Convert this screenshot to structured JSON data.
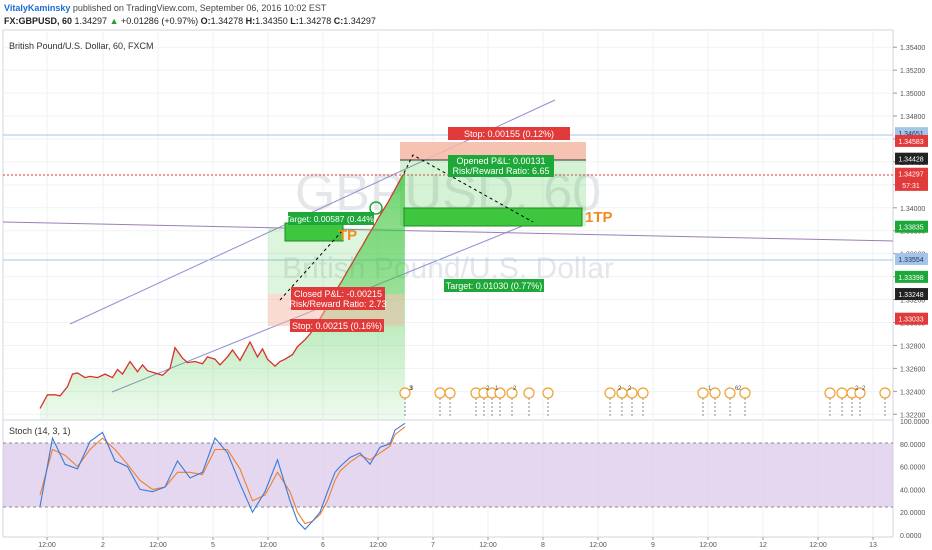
{
  "header": {
    "user": "VitalyKaminsky",
    "published": "published on TradingView.com, September 06, 2016 10:02 EST",
    "symbol": "FX:GBPUSD, 60",
    "last": "1.34297",
    "change_arrow": "▲",
    "change": "+0.01286 (+0.97%)",
    "o_label": "O:",
    "o": "1.34278",
    "h_label": "H:",
    "h": "1.34350",
    "l_label": "L:",
    "l": "1.34278",
    "c_label": "C:",
    "c": "1.34297"
  },
  "legend": "British Pound/U.S. Dollar, 60, FXCM",
  "watermark": {
    "line1": "GBPUSD, 60",
    "line2": "British Pound/U.S. Dollar"
  },
  "indicator_label": "Stoch (14, 3, 1)",
  "colors": {
    "price_line": "#d9302c",
    "area_fill": "#3ec63e",
    "stoch_k": "#3b7ad8",
    "stoch_d": "#f07f2a",
    "stoch_band": "#d8c6e8",
    "target_box": "#3dd94a",
    "stop_box": "#f4b8a6"
  },
  "chart_data": {
    "type": "area",
    "title": "",
    "x_ticks": [
      "12:00",
      "2",
      "12:00",
      "5",
      "12:00",
      "6",
      "12:00",
      "7",
      "12:00",
      "8",
      "12:00",
      "9",
      "12:00",
      "12",
      "12:00",
      "13"
    ],
    "y_ticks": [
      "1.35400",
      "1.35200",
      "1.35000",
      "1.34800",
      "1.34600",
      "1.34400",
      "1.34200",
      "1.34000",
      "1.33800",
      "1.33600",
      "1.33400",
      "1.33200",
      "1.33000",
      "1.32800",
      "1.32600",
      "1.32400",
      "1.32200"
    ],
    "ylim": [
      1.3215,
      1.3555
    ],
    "price_labels": [
      {
        "text": "1.34651",
        "value": 1.34651,
        "color": "#a5c4e8",
        "text_color": "#1a3a66"
      },
      {
        "text": "1.34583",
        "value": 1.34583,
        "color": "#e03a3a",
        "text_color": "#ffffff"
      },
      {
        "text": "1.34428",
        "value": 1.34428,
        "color": "#222222",
        "text_color": "#ffffff"
      },
      {
        "text": "1.34297",
        "value": 1.34297,
        "color": "#e03a3a",
        "text_color": "#ffffff"
      },
      {
        "text": "57:31",
        "value": 1.342,
        "color": "#e03a3a",
        "text_color": "#ffffff"
      },
      {
        "text": "1.33835",
        "value": 1.33835,
        "color": "#1fa83a",
        "text_color": "#ffffff"
      },
      {
        "text": "1.33554",
        "value": 1.33554,
        "color": "#a5c4e8",
        "text_color": "#1a3a66"
      },
      {
        "text": "1.33398",
        "value": 1.33398,
        "color": "#1fa83a",
        "text_color": "#ffffff"
      },
      {
        "text": "1.33248",
        "value": 1.33248,
        "color": "#222222",
        "text_color": "#ffffff"
      },
      {
        "text": "1.33033",
        "value": 1.33033,
        "color": "#e03a3a",
        "text_color": "#ffffff"
      }
    ],
    "series": [
      {
        "values": [
          [
            0,
            1.3225
          ],
          [
            3,
            1.3237
          ],
          [
            6,
            1.3237
          ],
          [
            8,
            1.3236
          ],
          [
            11,
            1.3244
          ],
          [
            13,
            1.3255
          ],
          [
            15,
            1.3256
          ],
          [
            18,
            1.3252
          ],
          [
            20,
            1.3253
          ],
          [
            23,
            1.3252
          ],
          [
            26,
            1.3255
          ],
          [
            29,
            1.3252
          ],
          [
            31,
            1.3259
          ],
          [
            33,
            1.3255
          ],
          [
            36,
            1.3266
          ],
          [
            39,
            1.3257
          ],
          [
            41,
            1.3263
          ],
          [
            43,
            1.3258
          ],
          [
            46,
            1.3256
          ],
          [
            49,
            1.3254
          ],
          [
            52,
            1.326
          ],
          [
            54,
            1.3278
          ],
          [
            57,
            1.3269
          ],
          [
            59,
            1.3265
          ],
          [
            62,
            1.3266
          ],
          [
            65,
            1.3264
          ],
          [
            67,
            1.327
          ],
          [
            70,
            1.3268
          ],
          [
            72,
            1.3263
          ],
          [
            75,
            1.327
          ],
          [
            77,
            1.3276
          ],
          [
            80,
            1.3267
          ],
          [
            82,
            1.3275
          ],
          [
            84,
            1.3283
          ],
          [
            87,
            1.327
          ],
          [
            89,
            1.3277
          ],
          [
            91,
            1.3268
          ],
          [
            94,
            1.3262
          ],
          [
            96,
            1.3266
          ],
          [
            98,
            1.3268
          ],
          [
            101,
            1.3272
          ],
          [
            103,
            1.3279
          ],
          [
            106,
            1.3285
          ],
          [
            108,
            1.329
          ],
          [
            110,
            1.3296
          ],
          [
            113,
            1.3307
          ],
          [
            115,
            1.3314
          ],
          [
            117,
            1.3322
          ],
          [
            119,
            1.333
          ],
          [
            121,
            1.3337
          ],
          [
            123,
            1.3345
          ],
          [
            125,
            1.3352
          ],
          [
            127,
            1.336
          ],
          [
            129,
            1.3367
          ],
          [
            131,
            1.3375
          ],
          [
            133,
            1.3382
          ],
          [
            135,
            1.339
          ],
          [
            137,
            1.3397
          ],
          [
            139,
            1.3404
          ],
          [
            141,
            1.3412
          ],
          [
            143,
            1.342
          ],
          [
            145,
            1.3428
          ],
          [
            146,
            1.343
          ]
        ]
      }
    ],
    "stoch": {
      "ylim": [
        0,
        100
      ],
      "y_ticks": [
        "100.0000",
        "80.0000",
        "60.0000",
        "40.0000",
        "20.0000",
        "0.0000"
      ],
      "upper": 80,
      "lower": 20,
      "k": [
        [
          0,
          25
        ],
        [
          5,
          85
        ],
        [
          10,
          62
        ],
        [
          15,
          58
        ],
        [
          20,
          82
        ],
        [
          25,
          90
        ],
        [
          30,
          65
        ],
        [
          35,
          60
        ],
        [
          40,
          40
        ],
        [
          45,
          38
        ],
        [
          50,
          42
        ],
        [
          55,
          65
        ],
        [
          60,
          50
        ],
        [
          65,
          55
        ],
        [
          70,
          85
        ],
        [
          75,
          72
        ],
        [
          80,
          45
        ],
        [
          85,
          20
        ],
        [
          90,
          38
        ],
        [
          95,
          66
        ],
        [
          100,
          30
        ],
        [
          103,
          12
        ],
        [
          106,
          5
        ],
        [
          109,
          12
        ],
        [
          112,
          20
        ],
        [
          115,
          38
        ],
        [
          118,
          55
        ],
        [
          120,
          60
        ],
        [
          124,
          68
        ],
        [
          128,
          72
        ],
        [
          132,
          62
        ],
        [
          136,
          77
        ],
        [
          140,
          80
        ],
        [
          142,
          92
        ],
        [
          146,
          98
        ]
      ],
      "d": [
        [
          0,
          35
        ],
        [
          5,
          75
        ],
        [
          10,
          70
        ],
        [
          15,
          60
        ],
        [
          20,
          75
        ],
        [
          25,
          85
        ],
        [
          30,
          75
        ],
        [
          35,
          62
        ],
        [
          40,
          48
        ],
        [
          45,
          40
        ],
        [
          50,
          42
        ],
        [
          55,
          55
        ],
        [
          60,
          55
        ],
        [
          65,
          53
        ],
        [
          70,
          75
        ],
        [
          75,
          75
        ],
        [
          80,
          58
        ],
        [
          85,
          30
        ],
        [
          90,
          35
        ],
        [
          95,
          55
        ],
        [
          100,
          38
        ],
        [
          103,
          20
        ],
        [
          106,
          10
        ],
        [
          109,
          12
        ],
        [
          112,
          18
        ],
        [
          115,
          30
        ],
        [
          118,
          48
        ],
        [
          120,
          56
        ],
        [
          124,
          64
        ],
        [
          128,
          70
        ],
        [
          132,
          66
        ],
        [
          136,
          72
        ],
        [
          140,
          78
        ],
        [
          142,
          88
        ],
        [
          146,
          95
        ]
      ]
    },
    "annotations": [
      {
        "text": "Stop: 0.00155 (0.12%)"
      },
      {
        "text": "Opened P&L: 0.00131"
      },
      {
        "text": "Risk/Reward Ratio: 6.65"
      },
      {
        "text": "Target: 0.01030 (0.77%)"
      },
      {
        "text": "Target: 0.00587 (0.44%)"
      },
      {
        "text": "Closed P&L: -0.00215"
      },
      {
        "text": "Risk/Reward Ratio: 2.73"
      },
      {
        "text": "Stop: 0.00215 (0.16%)"
      },
      {
        "text": "TP"
      },
      {
        "text": "1TP"
      }
    ],
    "events": [
      "3",
      "2",
      "1",
      "2",
      "2",
      "2",
      "1",
      "6",
      "2",
      "2",
      "2",
      "3"
    ]
  }
}
